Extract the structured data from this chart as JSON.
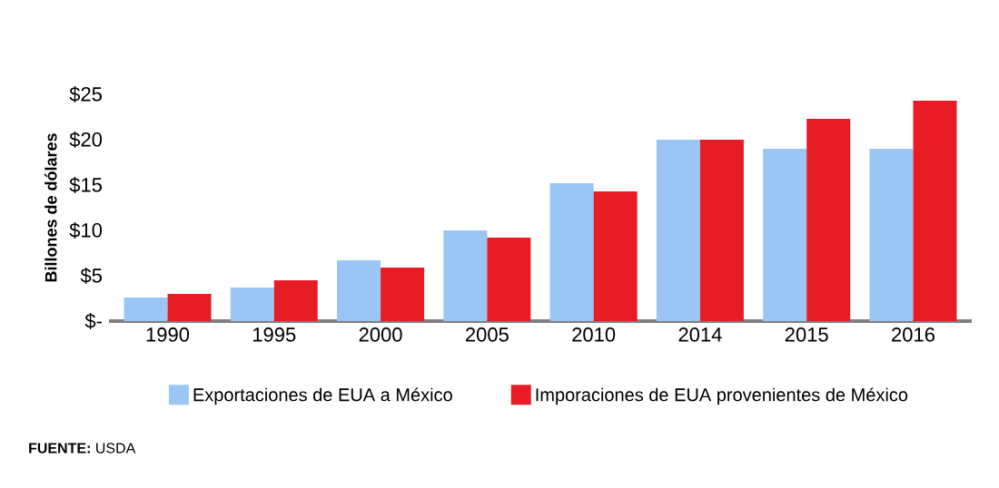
{
  "chart_data": {
    "type": "bar",
    "ylabel": "Billones de dólares",
    "categories": [
      "1990",
      "1995",
      "2000",
      "2005",
      "2010",
      "2014",
      "2015",
      "2016"
    ],
    "series": [
      {
        "name": "Exportaciones de EUA a México",
        "color": "#9ac5f4",
        "values": [
          2.6,
          3.7,
          6.7,
          10,
          15.2,
          20,
          19,
          19
        ]
      },
      {
        "name": "Imporaciones de EUA provenientes de México",
        "color": "#e81c24",
        "values": [
          3,
          4.5,
          5.9,
          9.2,
          14.3,
          20,
          22.3,
          24.3
        ]
      }
    ],
    "ylim": [
      0,
      25
    ],
    "yticks": [
      {
        "value": 0,
        "label": "$-"
      },
      {
        "value": 5,
        "label": "$5"
      },
      {
        "value": 10,
        "label": "$10"
      },
      {
        "value": 15,
        "label": "$15"
      },
      {
        "value": 20,
        "label": "$20"
      },
      {
        "value": 25,
        "label": "$25"
      }
    ],
    "legend": "bottom",
    "annotations": [
      "**FUENTE:** USDA"
    ]
  }
}
